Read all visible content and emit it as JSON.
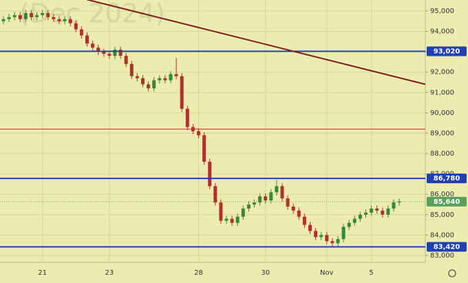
{
  "chart_data": {
    "type": "candlestick",
    "watermark": "(Dec 2024)",
    "categories": [
      null,
      null,
      null,
      null,
      null,
      null,
      null,
      "21",
      null,
      null,
      null,
      null,
      null,
      null,
      null,
      null,
      null,
      null,
      null,
      "23",
      null,
      null,
      null,
      null,
      null,
      null,
      null,
      null,
      null,
      null,
      null,
      null,
      null,
      null,
      null,
      "28",
      null,
      null,
      null,
      null,
      null,
      null,
      null,
      null,
      null,
      null,
      null,
      "30",
      null,
      null,
      null,
      null,
      null,
      null,
      null,
      null,
      null,
      null,
      "Nov",
      null,
      null,
      null,
      null,
      null,
      null,
      null,
      "5",
      null,
      null,
      null,
      null,
      null
    ],
    "open": [
      94500,
      94600,
      94700,
      94800,
      94600,
      94900,
      94700,
      94800,
      94900,
      94700,
      94600,
      94500,
      94600,
      94400,
      94100,
      93800,
      93400,
      93200,
      93000,
      92900,
      92800,
      93100,
      92800,
      92400,
      91800,
      91700,
      91400,
      91200,
      91600,
      91700,
      91600,
      91900,
      91800,
      90200,
      89300,
      89100,
      88900,
      87600,
      86400,
      85600,
      84700,
      84800,
      84600,
      84900,
      85300,
      85500,
      85600,
      85900,
      85700,
      86100,
      86400,
      85800,
      85400,
      85200,
      84900,
      84500,
      84200,
      83900,
      84000,
      83700,
      83600,
      83800,
      84400,
      84600,
      84800,
      85000,
      85100,
      85300,
      85200,
      85000,
      85300,
      85600
    ],
    "high": [
      94750,
      94850,
      94950,
      94950,
      95050,
      95050,
      94950,
      95050,
      95050,
      94850,
      94750,
      94750,
      94750,
      94550,
      94250,
      93950,
      93550,
      93350,
      93150,
      93050,
      93250,
      93250,
      92950,
      92550,
      91950,
      91850,
      91550,
      91750,
      91850,
      91850,
      92050,
      92700,
      91950,
      90350,
      89450,
      89250,
      89050,
      87750,
      86550,
      85750,
      84950,
      84950,
      85050,
      85450,
      85650,
      85750,
      86050,
      86050,
      86250,
      86700,
      86550,
      85950,
      85550,
      85350,
      85050,
      84650,
      84350,
      84150,
      84150,
      83850,
      83950,
      84550,
      84750,
      84950,
      85150,
      85250,
      85450,
      85450,
      85350,
      85450,
      85750,
      85790
    ],
    "low": [
      94350,
      94450,
      94550,
      94450,
      94450,
      94550,
      94550,
      94650,
      94550,
      94450,
      94350,
      94350,
      94250,
      93950,
      93650,
      93250,
      93050,
      92850,
      92750,
      92650,
      92650,
      92650,
      92250,
      91650,
      91550,
      91250,
      91050,
      91050,
      91450,
      91450,
      91450,
      91650,
      90050,
      89150,
      88950,
      88750,
      87450,
      86250,
      85450,
      84550,
      84550,
      84450,
      84450,
      84750,
      85150,
      85350,
      85450,
      85550,
      85550,
      85950,
      85650,
      85250,
      85050,
      84750,
      84350,
      84050,
      83750,
      83750,
      83550,
      83450,
      83450,
      83650,
      84250,
      84450,
      84650,
      84850,
      84950,
      85050,
      84850,
      84850,
      85150,
      85450
    ],
    "close": [
      94600,
      94700,
      94800,
      94600,
      94900,
      94700,
      94800,
      94900,
      94700,
      94600,
      94500,
      94600,
      94400,
      94100,
      93800,
      93400,
      93200,
      93000,
      92900,
      92800,
      93100,
      92800,
      92400,
      91800,
      91700,
      91400,
      91200,
      91600,
      91700,
      91600,
      91900,
      91800,
      90200,
      89300,
      89100,
      88900,
      87600,
      86400,
      85600,
      84700,
      84800,
      84600,
      84900,
      85300,
      85500,
      85600,
      85900,
      85700,
      86100,
      86400,
      85800,
      85400,
      85200,
      84900,
      84500,
      84200,
      83900,
      84000,
      83700,
      83600,
      83800,
      84400,
      84600,
      84800,
      85000,
      85100,
      85300,
      85200,
      85000,
      85300,
      85600,
      85640
    ],
    "up_color": "#2f8a3a",
    "down_color": "#b0332b",
    "ylim": [
      82660,
      95540
    ],
    "yticks": [
      {
        "value": 83000,
        "label": "83,000"
      },
      {
        "value": 84000,
        "label": "84,000"
      },
      {
        "value": 85000,
        "label": "85,000"
      },
      {
        "value": 86000,
        "label": "86,000"
      },
      {
        "value": 87000,
        "label": "87,000"
      },
      {
        "value": 88000,
        "label": "88,000"
      },
      {
        "value": 89000,
        "label": "89,000"
      },
      {
        "value": 90000,
        "label": "90,000"
      },
      {
        "value": 91000,
        "label": "91,000"
      },
      {
        "value": 92000,
        "label": "92,000"
      },
      {
        "value": 93000,
        "label": "93,000"
      },
      {
        "value": 94000,
        "label": "94,000"
      },
      {
        "value": 95000,
        "label": "95,000"
      }
    ],
    "grid": true,
    "levels": [
      {
        "value": 93020,
        "label": "93,020",
        "color": "#1f3fb5"
      },
      {
        "value": 86780,
        "label": "86,780",
        "color": "#1f3fb5"
      },
      {
        "value": 83420,
        "label": "83,420",
        "color": "#1f3fb5"
      },
      {
        "value": 89200,
        "color": "#c0392b"
      },
      {
        "value": 85640,
        "label": "85,640",
        "color": "#5aa05a",
        "dashed": true
      }
    ],
    "trendline": {
      "x": [
        15,
        77
      ],
      "y": [
        95560,
        91310
      ],
      "color": "#7a1f1f"
    }
  }
}
